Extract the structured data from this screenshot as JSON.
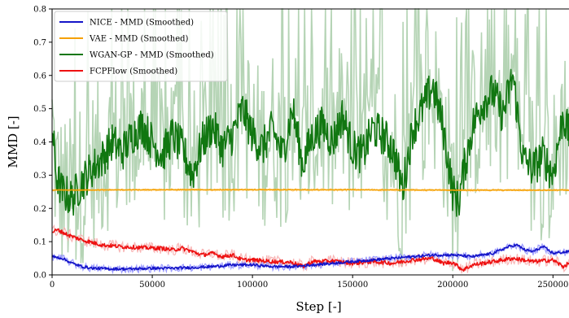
{
  "chart_data": {
    "type": "line",
    "xlabel": "Step [-]",
    "ylabel": "MMD [-]",
    "xlim": [
      0,
      258000
    ],
    "ylim": [
      0,
      0.8
    ],
    "xticks": [
      0,
      50000,
      100000,
      150000,
      200000,
      250000
    ],
    "yticks": [
      0.0,
      0.1,
      0.2,
      0.3,
      0.4,
      0.5,
      0.6,
      0.7,
      0.8
    ],
    "xtick_labels": [
      "0",
      "50000",
      "100000",
      "150000",
      "200000",
      "250000"
    ],
    "ytick_labels": [
      "0.0",
      "0.1",
      "0.2",
      "0.3",
      "0.4",
      "0.5",
      "0.6",
      "0.7",
      "0.8"
    ],
    "legend_position": "top-left",
    "grid": false,
    "series": [
      {
        "name": "NICE - MMD (Smoothed)",
        "color": "#1515c8",
        "raw_color": "#8b8bff",
        "x": [
          0,
          5000,
          10000,
          15000,
          20000,
          30000,
          40000,
          50000,
          60000,
          70000,
          80000,
          90000,
          100000,
          110000,
          120000,
          130000,
          140000,
          150000,
          160000,
          170000,
          180000,
          190000,
          200000,
          210000,
          220000,
          228000,
          232000,
          236000,
          240000,
          245000,
          250000,
          258000
        ],
        "values": [
          0.055,
          0.05,
          0.035,
          0.025,
          0.02,
          0.018,
          0.018,
          0.02,
          0.02,
          0.022,
          0.025,
          0.03,
          0.03,
          0.025,
          0.025,
          0.03,
          0.035,
          0.04,
          0.045,
          0.05,
          0.055,
          0.06,
          0.06,
          0.055,
          0.065,
          0.085,
          0.09,
          0.075,
          0.07,
          0.085,
          0.065,
          0.07
        ]
      },
      {
        "name": "VAE - MMD (Smoothed)",
        "color": "#f5a000",
        "raw_color": "#fbd28a",
        "x": [
          0,
          50000,
          100000,
          150000,
          200000,
          258000
        ],
        "values": [
          0.255,
          0.256,
          0.256,
          0.256,
          0.255,
          0.255
        ]
      },
      {
        "name": "WGAN-GP - MMD (Smoothed)",
        "color": "#117711",
        "raw_color": "#9cc59c",
        "x": [
          0,
          2000,
          5000,
          10000,
          15000,
          20000,
          25000,
          30000,
          35000,
          40000,
          45000,
          50000,
          55000,
          60000,
          65000,
          70000,
          75000,
          80000,
          85000,
          90000,
          95000,
          100000,
          105000,
          110000,
          115000,
          120000,
          125000,
          130000,
          135000,
          140000,
          145000,
          150000,
          155000,
          160000,
          165000,
          170000,
          175000,
          180000,
          185000,
          190000,
          195000,
          200000,
          203000,
          205000,
          210000,
          215000,
          220000,
          225000,
          230000,
          235000,
          240000,
          245000,
          250000,
          255000,
          258000
        ],
        "values": [
          0.45,
          0.3,
          0.25,
          0.23,
          0.28,
          0.32,
          0.35,
          0.4,
          0.37,
          0.42,
          0.45,
          0.4,
          0.36,
          0.42,
          0.38,
          0.3,
          0.4,
          0.45,
          0.38,
          0.42,
          0.5,
          0.42,
          0.38,
          0.44,
          0.36,
          0.5,
          0.33,
          0.42,
          0.45,
          0.4,
          0.48,
          0.38,
          0.36,
          0.44,
          0.42,
          0.38,
          0.26,
          0.44,
          0.5,
          0.57,
          0.45,
          0.25,
          0.22,
          0.3,
          0.45,
          0.52,
          0.55,
          0.48,
          0.6,
          0.35,
          0.32,
          0.36,
          0.3,
          0.48,
          0.42
        ]
      },
      {
        "name": "FCPFlow (Smoothed)",
        "color": "#ee1111",
        "raw_color": "#f7a9a9",
        "x": [
          0,
          3000,
          8000,
          15000,
          25000,
          35000,
          45000,
          55000,
          60000,
          65000,
          70000,
          75000,
          80000,
          85000,
          90000,
          95000,
          100000,
          110000,
          120000,
          125000,
          130000,
          140000,
          150000,
          160000,
          170000,
          180000,
          190000,
          195000,
          200000,
          205000,
          210000,
          220000,
          230000,
          240000,
          250000,
          255000,
          258000
        ],
        "values": [
          0.13,
          0.135,
          0.12,
          0.105,
          0.09,
          0.085,
          0.082,
          0.08,
          0.075,
          0.08,
          0.07,
          0.06,
          0.065,
          0.055,
          0.06,
          0.045,
          0.045,
          0.04,
          0.038,
          0.025,
          0.04,
          0.042,
          0.035,
          0.04,
          0.035,
          0.045,
          0.05,
          0.035,
          0.038,
          0.015,
          0.03,
          0.04,
          0.05,
          0.04,
          0.045,
          0.025,
          0.035
        ]
      }
    ]
  }
}
